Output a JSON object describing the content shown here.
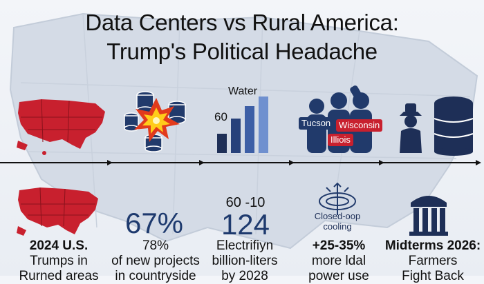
{
  "title": {
    "line1": "Data Centers vs Rural America:",
    "line2": "Trump's Political Headache"
  },
  "top_row": {
    "water_label": "Water",
    "water_value": "60",
    "tags": {
      "tucson": "Tucson",
      "wisconsin": "Wisconsin",
      "illinois": "Illiois"
    }
  },
  "stats": {
    "percent": "67%",
    "number_top": "60 -10",
    "number": "124",
    "cooling_line1": "Closed-oop",
    "cooling_line2": "cooling"
  },
  "captions": [
    {
      "l1": "2024 U.S.",
      "l2": "Trumps in",
      "l3": "Rurned areas"
    },
    {
      "l1": "78%",
      "l2": "of new projects",
      "l3": "in countryside"
    },
    {
      "l1": "Electrifiyn",
      "l2": "billion-liters",
      "l3": "by 2028"
    },
    {
      "l1": "+25-35%",
      "l2": "more ldal",
      "l3": "power use"
    },
    {
      "l1": "Midterms 2026:",
      "l2": "Farmers",
      "l3": "Fight Back"
    }
  ],
  "colors": {
    "red": "#c8202e",
    "navy": "#1e3a6e",
    "timeline": "#111111"
  }
}
